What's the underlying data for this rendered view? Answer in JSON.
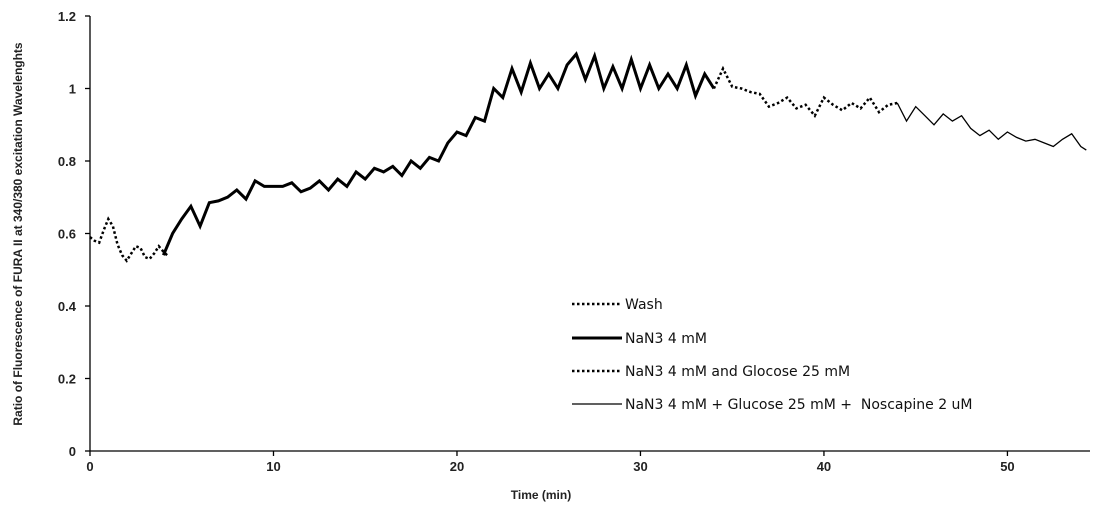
{
  "chart_data": {
    "type": "line",
    "title": "",
    "xlabel": "Time (min)",
    "ylabel": "Ratio of Fluorescence of FURA II at 340/380 excitation Wavelenghts",
    "xlim": [
      0,
      54.5
    ],
    "ylim": [
      0,
      1.2
    ],
    "x_ticks": [
      "0",
      "10",
      "20",
      "30",
      "40",
      "50"
    ],
    "y_ticks": [
      "0",
      "0.2",
      "0.4",
      "0.6",
      "0.8",
      "1",
      "1.2"
    ],
    "grid": false,
    "legend_position": "center-right",
    "series": [
      {
        "name": "Wash",
        "style": "dotted",
        "width": 2.5,
        "color": "#000000",
        "x": [
          0,
          0.25,
          0.5,
          0.75,
          1.0,
          1.25,
          1.5,
          1.75,
          2.0,
          2.25,
          2.5,
          2.75,
          3.0,
          3.25,
          3.5,
          3.75,
          4.0,
          4.2
        ],
        "y": [
          0.59,
          0.58,
          0.575,
          0.61,
          0.64,
          0.62,
          0.57,
          0.54,
          0.525,
          0.545,
          0.565,
          0.56,
          0.535,
          0.53,
          0.545,
          0.565,
          0.55,
          0.54
        ]
      },
      {
        "name": "NaN3 4 mM",
        "style": "solid",
        "width": 3,
        "color": "#000000",
        "x": [
          4.0,
          4.5,
          5.0,
          5.5,
          6.0,
          6.5,
          7.0,
          7.5,
          8.0,
          8.5,
          9.0,
          9.5,
          10.0,
          10.5,
          11.0,
          11.5,
          12.0,
          12.5,
          13.0,
          13.5,
          14.0,
          14.5,
          15.0,
          15.5,
          16.0,
          16.5,
          17.0,
          17.5,
          18.0,
          18.5,
          19.0,
          19.5,
          20.0,
          20.5,
          21.0,
          21.5,
          22.0,
          22.5,
          23.0,
          23.5,
          24.0,
          24.5,
          25.0,
          25.5,
          26.0,
          26.5,
          27.0,
          27.5,
          28.0,
          28.5,
          29.0,
          29.5,
          30.0,
          30.5,
          31.0,
          31.5,
          32.0,
          32.5,
          33.0,
          33.5,
          34.0
        ],
        "y": [
          0.54,
          0.6,
          0.64,
          0.675,
          0.62,
          0.685,
          0.69,
          0.7,
          0.72,
          0.695,
          0.745,
          0.73,
          0.73,
          0.73,
          0.74,
          0.715,
          0.725,
          0.745,
          0.72,
          0.75,
          0.73,
          0.77,
          0.75,
          0.78,
          0.77,
          0.785,
          0.76,
          0.8,
          0.78,
          0.81,
          0.8,
          0.85,
          0.88,
          0.87,
          0.92,
          0.91,
          1.0,
          0.975,
          1.055,
          0.99,
          1.07,
          1.0,
          1.04,
          1.0,
          1.065,
          1.095,
          1.025,
          1.09,
          1.0,
          1.06,
          1.0,
          1.08,
          1.0,
          1.065,
          1.0,
          1.04,
          1.0,
          1.065,
          0.98,
          1.04,
          1.0
        ]
      },
      {
        "name": "NaN3 4 mM and Glocose 25 mM",
        "style": "dotted",
        "width": 2.5,
        "color": "#000000",
        "x": [
          34.0,
          34.5,
          35.0,
          35.5,
          36.0,
          36.5,
          37.0,
          37.5,
          38.0,
          38.5,
          39.0,
          39.5,
          40.0,
          40.5,
          41.0,
          41.5,
          42.0,
          42.5,
          43.0,
          43.5,
          44.0
        ],
        "y": [
          1.0,
          1.055,
          1.005,
          1.0,
          0.99,
          0.985,
          0.95,
          0.96,
          0.975,
          0.945,
          0.955,
          0.925,
          0.975,
          0.955,
          0.94,
          0.96,
          0.945,
          0.975,
          0.935,
          0.955,
          0.96
        ]
      },
      {
        "name": "NaN3 4 mM + Glucose 25 mM +  Noscapine 2 uM",
        "style": "solid",
        "width": 1.3,
        "color": "#000000",
        "x": [
          44.0,
          44.5,
          45.0,
          45.5,
          46.0,
          46.5,
          47.0,
          47.5,
          48.0,
          48.5,
          49.0,
          49.5,
          50.0,
          50.5,
          51.0,
          51.5,
          52.0,
          52.5,
          53.0,
          53.5,
          54.0,
          54.3
        ],
        "y": [
          0.96,
          0.91,
          0.95,
          0.925,
          0.9,
          0.93,
          0.91,
          0.925,
          0.89,
          0.87,
          0.885,
          0.86,
          0.88,
          0.865,
          0.855,
          0.86,
          0.85,
          0.84,
          0.86,
          0.875,
          0.84,
          0.83
        ]
      }
    ]
  }
}
